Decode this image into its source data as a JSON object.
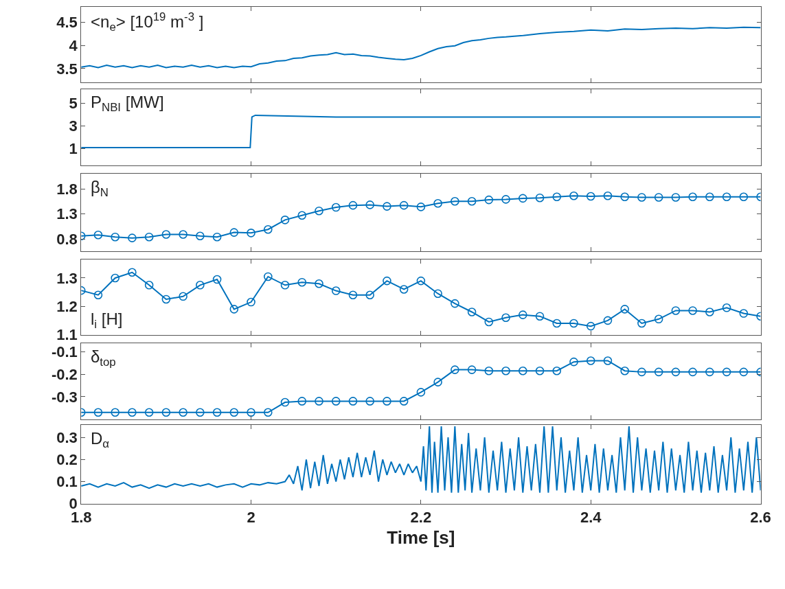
{
  "chart_data": [
    {
      "type": "line",
      "annotations": [
        "<n$_{e}$> [10$^{19}$ m$^{-3}$ ]"
      ],
      "color": "#0072bd",
      "marker": "none",
      "tick_labels": "y",
      "xlim": [
        1.8,
        2.6
      ],
      "xticks": [
        1.8,
        2,
        2.2,
        2.4,
        2.6
      ],
      "ylim": [
        3.2,
        4.83
      ],
      "yticks": [
        3.5,
        4,
        4.5
      ],
      "x": [
        1.8,
        1.81,
        1.82,
        1.83,
        1.84,
        1.85,
        1.86,
        1.87,
        1.88,
        1.89,
        1.9,
        1.91,
        1.92,
        1.93,
        1.94,
        1.95,
        1.96,
        1.97,
        1.98,
        1.99,
        2.0,
        2.01,
        2.02,
        2.03,
        2.04,
        2.05,
        2.06,
        2.07,
        2.08,
        2.09,
        2.1,
        2.11,
        2.12,
        2.13,
        2.14,
        2.15,
        2.16,
        2.17,
        2.18,
        2.19,
        2.2,
        2.21,
        2.22,
        2.23,
        2.24,
        2.25,
        2.26,
        2.27,
        2.28,
        2.29,
        2.3,
        2.32,
        2.34,
        2.36,
        2.38,
        2.4,
        2.42,
        2.44,
        2.46,
        2.48,
        2.5,
        2.52,
        2.54,
        2.56,
        2.58,
        2.6
      ],
      "values": [
        3.53,
        3.56,
        3.52,
        3.57,
        3.53,
        3.56,
        3.52,
        3.56,
        3.53,
        3.57,
        3.52,
        3.55,
        3.53,
        3.57,
        3.53,
        3.56,
        3.52,
        3.55,
        3.52,
        3.55,
        3.54,
        3.6,
        3.62,
        3.66,
        3.67,
        3.72,
        3.73,
        3.77,
        3.79,
        3.8,
        3.84,
        3.8,
        3.81,
        3.78,
        3.77,
        3.74,
        3.72,
        3.7,
        3.69,
        3.72,
        3.78,
        3.86,
        3.93,
        3.97,
        3.99,
        4.06,
        4.1,
        4.12,
        4.15,
        4.17,
        4.18,
        4.21,
        4.25,
        4.28,
        4.3,
        4.33,
        4.31,
        4.35,
        4.34,
        4.36,
        4.37,
        4.36,
        4.38,
        4.37,
        4.39,
        4.38
      ]
    },
    {
      "type": "line",
      "annotations": [
        "P$_{NBI}$ [MW]"
      ],
      "color": "#0072bd",
      "marker": "none",
      "tick_labels": "y",
      "xlim": [
        1.8,
        2.6
      ],
      "xticks": [
        1.8,
        2,
        2.2,
        2.4,
        2.6
      ],
      "ylim": [
        -0.5,
        6.25
      ],
      "yticks": [
        1,
        3,
        5
      ],
      "x": [
        1.8,
        1.9,
        1.999,
        2.001,
        2.005,
        2.1,
        2.3,
        2.5,
        2.6
      ],
      "values": [
        1.1,
        1.1,
        1.1,
        3.8,
        3.95,
        3.8,
        3.8,
        3.8,
        3.8
      ]
    },
    {
      "type": "line",
      "annotations": [
        "β$_{N}$"
      ],
      "color": "#0072bd",
      "marker": "circle",
      "tick_labels": "y",
      "xlim": [
        1.8,
        2.6
      ],
      "xticks": [
        1.8,
        2,
        2.2,
        2.4,
        2.6
      ],
      "ylim": [
        0.55,
        2.1
      ],
      "yticks": [
        0.8,
        1.3,
        1.8
      ],
      "x": [
        1.8,
        1.82,
        1.84,
        1.86,
        1.88,
        1.9,
        1.92,
        1.94,
        1.96,
        1.98,
        2.0,
        2.02,
        2.04,
        2.06,
        2.08,
        2.1,
        2.12,
        2.14,
        2.16,
        2.18,
        2.2,
        2.22,
        2.24,
        2.26,
        2.28,
        2.3,
        2.32,
        2.34,
        2.36,
        2.38,
        2.4,
        2.42,
        2.44,
        2.46,
        2.48,
        2.5,
        2.52,
        2.54,
        2.56,
        2.58,
        2.6
      ],
      "values": [
        0.86,
        0.88,
        0.84,
        0.82,
        0.84,
        0.89,
        0.89,
        0.86,
        0.84,
        0.93,
        0.92,
        0.99,
        1.18,
        1.27,
        1.36,
        1.43,
        1.47,
        1.48,
        1.45,
        1.47,
        1.44,
        1.51,
        1.55,
        1.55,
        1.58,
        1.59,
        1.61,
        1.62,
        1.64,
        1.66,
        1.65,
        1.66,
        1.64,
        1.63,
        1.63,
        1.63,
        1.64,
        1.64,
        1.64,
        1.64,
        1.64
      ]
    },
    {
      "type": "line",
      "annotations": [
        "l$_{i}$ [H]"
      ],
      "color": "#0072bd",
      "marker": "circle",
      "tick_labels": "y",
      "xlim": [
        1.8,
        2.6
      ],
      "xticks": [
        1.8,
        2,
        2.2,
        2.4,
        2.6
      ],
      "ylim": [
        1.1,
        1.365
      ],
      "yticks": [
        1.1,
        1.2,
        1.3
      ],
      "x": [
        1.8,
        1.82,
        1.84,
        1.86,
        1.88,
        1.9,
        1.92,
        1.94,
        1.96,
        1.98,
        2.0,
        2.02,
        2.04,
        2.06,
        2.08,
        2.1,
        2.12,
        2.14,
        2.16,
        2.18,
        2.2,
        2.22,
        2.24,
        2.26,
        2.28,
        2.3,
        2.32,
        2.34,
        2.36,
        2.38,
        2.4,
        2.42,
        2.44,
        2.46,
        2.48,
        2.5,
        2.52,
        2.54,
        2.56,
        2.58,
        2.6
      ],
      "values": [
        1.256,
        1.24,
        1.3,
        1.32,
        1.275,
        1.225,
        1.235,
        1.275,
        1.295,
        1.19,
        1.215,
        1.305,
        1.275,
        1.285,
        1.28,
        1.255,
        1.24,
        1.24,
        1.29,
        1.26,
        1.29,
        1.245,
        1.21,
        1.18,
        1.145,
        1.16,
        1.17,
        1.165,
        1.14,
        1.14,
        1.13,
        1.15,
        1.19,
        1.14,
        1.155,
        1.185,
        1.185,
        1.18,
        1.195,
        1.175,
        1.165
      ]
    },
    {
      "type": "line",
      "annotations": [
        "δ$_{top}$"
      ],
      "color": "#0072bd",
      "marker": "circle",
      "tick_labels": "y",
      "xlim": [
        1.8,
        2.6
      ],
      "xticks": [
        1.8,
        2,
        2.2,
        2.4,
        2.6
      ],
      "ylim": [
        -0.4,
        -0.063
      ],
      "yticks": [
        -0.3,
        -0.2,
        -0.1
      ],
      "x": [
        1.8,
        1.82,
        1.84,
        1.86,
        1.88,
        1.9,
        1.92,
        1.94,
        1.96,
        1.98,
        2.0,
        2.02,
        2.04,
        2.06,
        2.08,
        2.1,
        2.12,
        2.14,
        2.16,
        2.18,
        2.2,
        2.22,
        2.24,
        2.26,
        2.28,
        2.3,
        2.32,
        2.34,
        2.36,
        2.38,
        2.4,
        2.42,
        2.44,
        2.46,
        2.48,
        2.5,
        2.52,
        2.54,
        2.56,
        2.58,
        2.6
      ],
      "values": [
        -0.37,
        -0.37,
        -0.37,
        -0.37,
        -0.37,
        -0.37,
        -0.37,
        -0.37,
        -0.37,
        -0.37,
        -0.37,
        -0.37,
        -0.325,
        -0.32,
        -0.32,
        -0.32,
        -0.32,
        -0.32,
        -0.32,
        -0.32,
        -0.28,
        -0.235,
        -0.18,
        -0.18,
        -0.185,
        -0.185,
        -0.185,
        -0.185,
        -0.185,
        -0.145,
        -0.14,
        -0.14,
        -0.185,
        -0.19,
        -0.19,
        -0.19,
        -0.19,
        -0.19,
        -0.19,
        -0.19,
        -0.19
      ]
    },
    {
      "type": "line",
      "annotations": [
        "D$_{α}$"
      ],
      "color": "#0072bd",
      "marker": "none",
      "xlabel": "Time [s]",
      "xlim": [
        1.8,
        2.6
      ],
      "xticks": [
        1.8,
        2,
        2.2,
        2.4,
        2.6
      ],
      "ylim": [
        0,
        0.355
      ],
      "yticks": [
        0,
        0.1,
        0.2,
        0.3
      ],
      "x": [
        1.8,
        1.81,
        1.82,
        1.83,
        1.84,
        1.85,
        1.86,
        1.87,
        1.88,
        1.89,
        1.9,
        1.91,
        1.92,
        1.93,
        1.94,
        1.95,
        1.96,
        1.97,
        1.98,
        1.99,
        2.0,
        2.01,
        2.02,
        2.03,
        2.04,
        2.045,
        2.05,
        2.055,
        2.06,
        2.065,
        2.07,
        2.075,
        2.08,
        2.085,
        2.09,
        2.095,
        2.1,
        2.105,
        2.11,
        2.115,
        2.12,
        2.125,
        2.13,
        2.135,
        2.14,
        2.145,
        2.15,
        2.155,
        2.16,
        2.165,
        2.17,
        2.175,
        2.18,
        2.185,
        2.19,
        2.195,
        2.2,
        2.203,
        2.206,
        2.21,
        2.213,
        2.216,
        2.22,
        2.224,
        2.228,
        2.232,
        2.236,
        2.24,
        2.244,
        2.248,
        2.252,
        2.256,
        2.26,
        2.265,
        2.27,
        2.275,
        2.28,
        2.285,
        2.29,
        2.295,
        2.3,
        2.305,
        2.31,
        2.315,
        2.32,
        2.325,
        2.33,
        2.335,
        2.34,
        2.345,
        2.35,
        2.355,
        2.36,
        2.365,
        2.37,
        2.375,
        2.38,
        2.385,
        2.39,
        2.395,
        2.4,
        2.405,
        2.41,
        2.415,
        2.42,
        2.425,
        2.43,
        2.435,
        2.44,
        2.445,
        2.45,
        2.455,
        2.46,
        2.465,
        2.47,
        2.475,
        2.48,
        2.485,
        2.49,
        2.495,
        2.5,
        2.505,
        2.51,
        2.515,
        2.52,
        2.525,
        2.53,
        2.535,
        2.54,
        2.545,
        2.55,
        2.555,
        2.56,
        2.565,
        2.57,
        2.575,
        2.58,
        2.585,
        2.59,
        2.595,
        2.6
      ],
      "values": [
        0.08,
        0.09,
        0.075,
        0.09,
        0.08,
        0.095,
        0.075,
        0.085,
        0.07,
        0.085,
        0.075,
        0.09,
        0.08,
        0.09,
        0.08,
        0.09,
        0.075,
        0.085,
        0.09,
        0.075,
        0.09,
        0.085,
        0.095,
        0.09,
        0.1,
        0.13,
        0.09,
        0.17,
        0.06,
        0.2,
        0.07,
        0.19,
        0.08,
        0.22,
        0.09,
        0.18,
        0.1,
        0.2,
        0.11,
        0.21,
        0.12,
        0.23,
        0.12,
        0.21,
        0.13,
        0.24,
        0.1,
        0.2,
        0.13,
        0.19,
        0.14,
        0.18,
        0.13,
        0.18,
        0.14,
        0.17,
        0.1,
        0.26,
        0.06,
        0.35,
        0.05,
        0.28,
        0.05,
        0.35,
        0.06,
        0.3,
        0.05,
        0.35,
        0.05,
        0.27,
        0.06,
        0.32,
        0.05,
        0.25,
        0.06,
        0.3,
        0.05,
        0.24,
        0.06,
        0.28,
        0.05,
        0.25,
        0.06,
        0.3,
        0.05,
        0.26,
        0.06,
        0.27,
        0.05,
        0.35,
        0.05,
        0.35,
        0.06,
        0.3,
        0.05,
        0.24,
        0.06,
        0.3,
        0.05,
        0.22,
        0.06,
        0.27,
        0.05,
        0.25,
        0.06,
        0.22,
        0.05,
        0.3,
        0.06,
        0.35,
        0.05,
        0.3,
        0.06,
        0.25,
        0.05,
        0.24,
        0.06,
        0.28,
        0.05,
        0.25,
        0.06,
        0.22,
        0.05,
        0.28,
        0.06,
        0.24,
        0.05,
        0.23,
        0.06,
        0.26,
        0.05,
        0.22,
        0.06,
        0.3,
        0.05,
        0.25,
        0.06,
        0.28,
        0.05,
        0.3,
        0.06
      ]
    }
  ]
}
